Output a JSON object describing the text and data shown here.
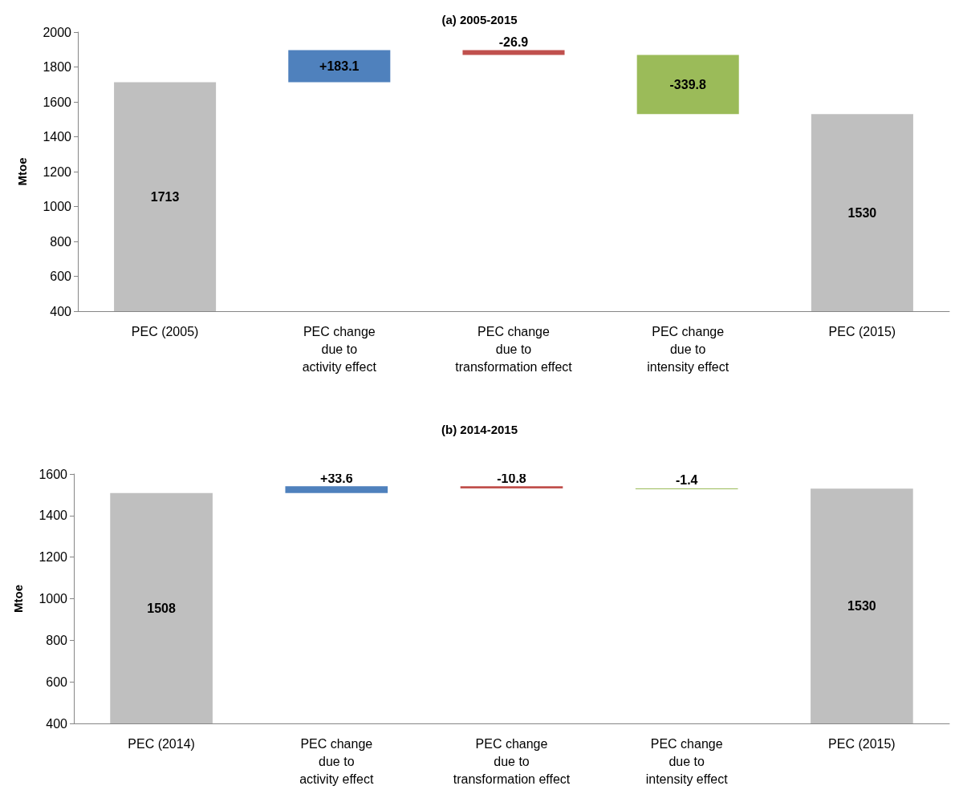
{
  "chart_data": [
    {
      "type": "bar",
      "title": "(a) 2005-2015",
      "ylabel": "Mtoe",
      "categories": [
        "PEC (2005)",
        "PEC change\ndue to\nactivity effect",
        "PEC change\ndue to\ntransformation effect",
        "PEC change\ndue to\nintensity effect",
        "PEC (2015)"
      ],
      "values": [
        1713,
        183.1,
        -26.9,
        -339.8,
        1530
      ],
      "base": [
        0,
        1713,
        1896.1,
        1869.2,
        0
      ],
      "colors": [
        "#bfbfbf",
        "#4f81bd",
        "#c0504d",
        "#9bbb59",
        "#bfbfbf"
      ],
      "value_labels": [
        "1713",
        "+183.1",
        "-26.9",
        "-339.8",
        "1530"
      ],
      "ylim": [
        400,
        2000
      ],
      "yticks": [
        400,
        600,
        800,
        1000,
        1200,
        1400,
        1600,
        1800,
        2000
      ]
    },
    {
      "type": "bar",
      "title": "(b) 2014-2015",
      "ylabel": "Mtoe",
      "categories": [
        "PEC (2014)",
        "PEC change\ndue to\nactivity effect",
        "PEC change\ndue to\ntransformation effect",
        "PEC change\ndue to\nintensity effect",
        "PEC (2015)"
      ],
      "values": [
        1508,
        33.6,
        -10.8,
        -1.4,
        1530
      ],
      "base": [
        0,
        1508,
        1541.6,
        1530.8,
        0
      ],
      "colors": [
        "#bfbfbf",
        "#4f81bd",
        "#c0504d",
        "#9bbb59",
        "#bfbfbf"
      ],
      "value_labels": [
        "1508",
        "+33.6",
        "-10.8",
        "-1.4",
        "1530"
      ],
      "ylim": [
        400,
        1600
      ],
      "yticks": [
        400,
        600,
        800,
        1000,
        1200,
        1400,
        1600
      ]
    }
  ]
}
